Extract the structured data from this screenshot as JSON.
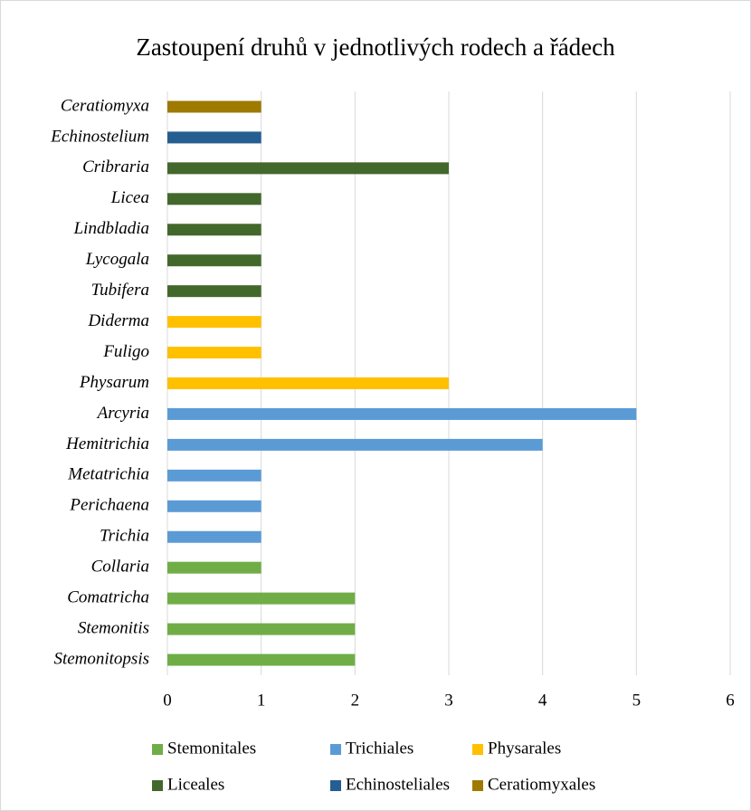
{
  "chart_data": {
    "type": "bar",
    "orientation": "horizontal",
    "title": "Zastoupení druhů v jednotlivých rodech a řádech",
    "categories": [
      "Ceratiomyxa",
      "Echinostelium",
      "Cribraria",
      "Licea",
      "Lindbladia",
      "Lycogala",
      "Tubifera",
      "Diderma",
      "Fuligo",
      "Physarum",
      "Arcyria",
      "Hemitrichia",
      "Metatrichia",
      "Perichaena",
      "Trichia",
      "Collaria",
      "Comatricha",
      "Stemonitis",
      "Stemonitopsis"
    ],
    "series": [
      {
        "name": "Stemonitales",
        "color": "#70ad47",
        "values": [
          null,
          null,
          null,
          null,
          null,
          null,
          null,
          null,
          null,
          null,
          null,
          null,
          null,
          null,
          null,
          1,
          2,
          2,
          2
        ]
      },
      {
        "name": "Trichiales",
        "color": "#5b9bd5",
        "values": [
          null,
          null,
          null,
          null,
          null,
          null,
          null,
          null,
          null,
          null,
          5,
          4,
          1,
          1,
          1,
          null,
          null,
          null,
          null
        ]
      },
      {
        "name": "Physarales",
        "color": "#ffc000",
        "values": [
          null,
          null,
          null,
          null,
          null,
          null,
          null,
          1,
          1,
          3,
          null,
          null,
          null,
          null,
          null,
          null,
          null,
          null,
          null
        ]
      },
      {
        "name": "Liceales",
        "color": "#43682b",
        "values": [
          null,
          null,
          3,
          1,
          1,
          1,
          1,
          null,
          null,
          null,
          null,
          null,
          null,
          null,
          null,
          null,
          null,
          null,
          null
        ]
      },
      {
        "name": "Echinosteliales",
        "color": "#255e91",
        "values": [
          null,
          1,
          null,
          null,
          null,
          null,
          null,
          null,
          null,
          null,
          null,
          null,
          null,
          null,
          null,
          null,
          null,
          null,
          null
        ]
      },
      {
        "name": "Ceratiomyxales",
        "color": "#9e7a00",
        "values": [
          1,
          null,
          null,
          null,
          null,
          null,
          null,
          null,
          null,
          null,
          null,
          null,
          null,
          null,
          null,
          null,
          null,
          null,
          null
        ]
      }
    ],
    "xlim": [
      0,
      6
    ],
    "xticks": [
      0,
      1,
      2,
      3,
      4,
      5,
      6
    ],
    "grid": true,
    "legend": "bottom"
  }
}
